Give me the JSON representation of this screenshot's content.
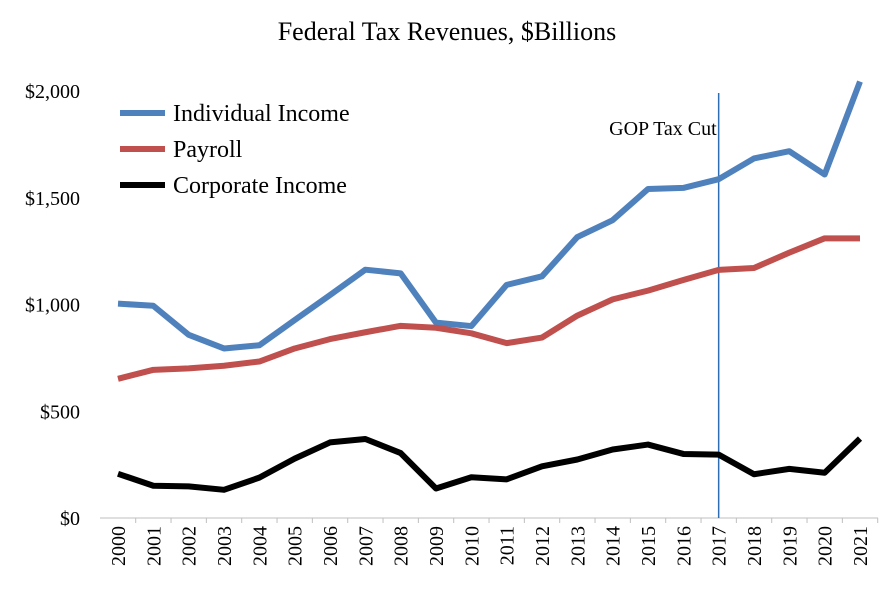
{
  "chart_data": {
    "type": "line",
    "title": "Federal Tax Revenues, $Billions",
    "xlabel": "",
    "ylabel": "",
    "x": [
      2000,
      2001,
      2002,
      2003,
      2004,
      2005,
      2006,
      2007,
      2008,
      2009,
      2010,
      2011,
      2012,
      2013,
      2014,
      2015,
      2016,
      2017,
      2018,
      2019,
      2020,
      2021
    ],
    "ylim": [
      0,
      2000
    ],
    "yticks": [
      0,
      500,
      1000,
      1500,
      2000
    ],
    "ytick_labels": [
      "$0",
      "$500",
      "$1,000",
      "$1,500",
      "$2,000"
    ],
    "grid": false,
    "legend_position": "top-left",
    "series": [
      {
        "name": "Individual Income",
        "color": "#4f81bd",
        "values": [
          1004,
          994,
          858,
          794,
          809,
          927,
          1044,
          1163,
          1146,
          915,
          899,
          1092,
          1132,
          1316,
          1395,
          1541,
          1546,
          1587,
          1684,
          1718,
          1609,
          2044
        ]
      },
      {
        "name": "Payroll",
        "color": "#c0504d",
        "values": [
          652,
          694,
          701,
          713,
          733,
          794,
          838,
          870,
          900,
          891,
          865,
          819,
          845,
          948,
          1024,
          1065,
          1115,
          1162,
          1171,
          1243,
          1310,
          1310
        ]
      },
      {
        "name": "Corporate Income",
        "color": "#000000",
        "values": [
          207,
          151,
          148,
          132,
          189,
          278,
          354,
          370,
          304,
          138,
          191,
          181,
          242,
          274,
          321,
          344,
          300,
          297,
          205,
          230,
          212,
          372
        ]
      }
    ],
    "annotations": [
      {
        "text": "GOP Tax Cut",
        "x": 2017,
        "type": "vertical-line",
        "color": "#2e6db4"
      }
    ]
  }
}
